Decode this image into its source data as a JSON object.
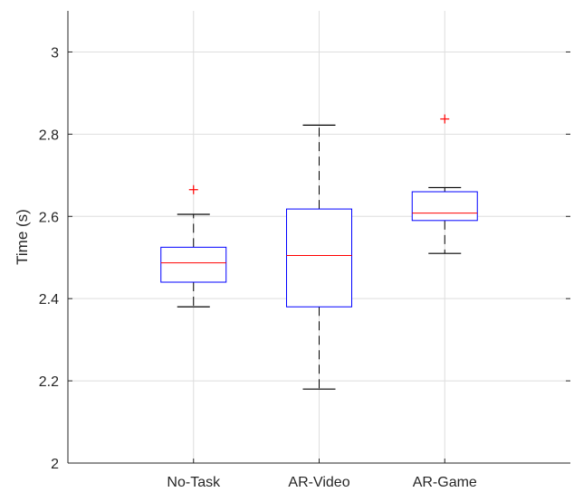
{
  "chart_data": {
    "type": "boxplot",
    "title": "",
    "xlabel": "",
    "ylabel": "Time (s)",
    "ylim": [
      2,
      3.1
    ],
    "yticks": [
      2,
      2.2,
      2.4,
      2.6,
      2.8,
      3
    ],
    "ytick_labels": [
      "2",
      "2.2",
      "2.4",
      "2.6",
      "2.8",
      "3"
    ],
    "grid": true,
    "categories": [
      "No-Task",
      "AR-Video",
      "AR-Game"
    ],
    "boxes": [
      {
        "category": "No-Task",
        "whisker_low": 2.38,
        "q1": 2.44,
        "median": 2.487,
        "q3": 2.525,
        "whisker_high": 2.605,
        "outliers": [
          2.665
        ]
      },
      {
        "category": "AR-Video",
        "whisker_low": 2.18,
        "q1": 2.38,
        "median": 2.505,
        "q3": 2.618,
        "whisker_high": 2.822,
        "outliers": []
      },
      {
        "category": "AR-Game",
        "whisker_low": 2.51,
        "q1": 2.59,
        "median": 2.608,
        "q3": 2.66,
        "whisker_high": 2.67,
        "outliers": [
          2.837
        ]
      }
    ],
    "colors": {
      "box": "#0000ff",
      "median": "#ff0000",
      "whisker": "#000000",
      "outlier": "#ff0000",
      "grid": "#dedede",
      "axis": "#262626"
    }
  }
}
